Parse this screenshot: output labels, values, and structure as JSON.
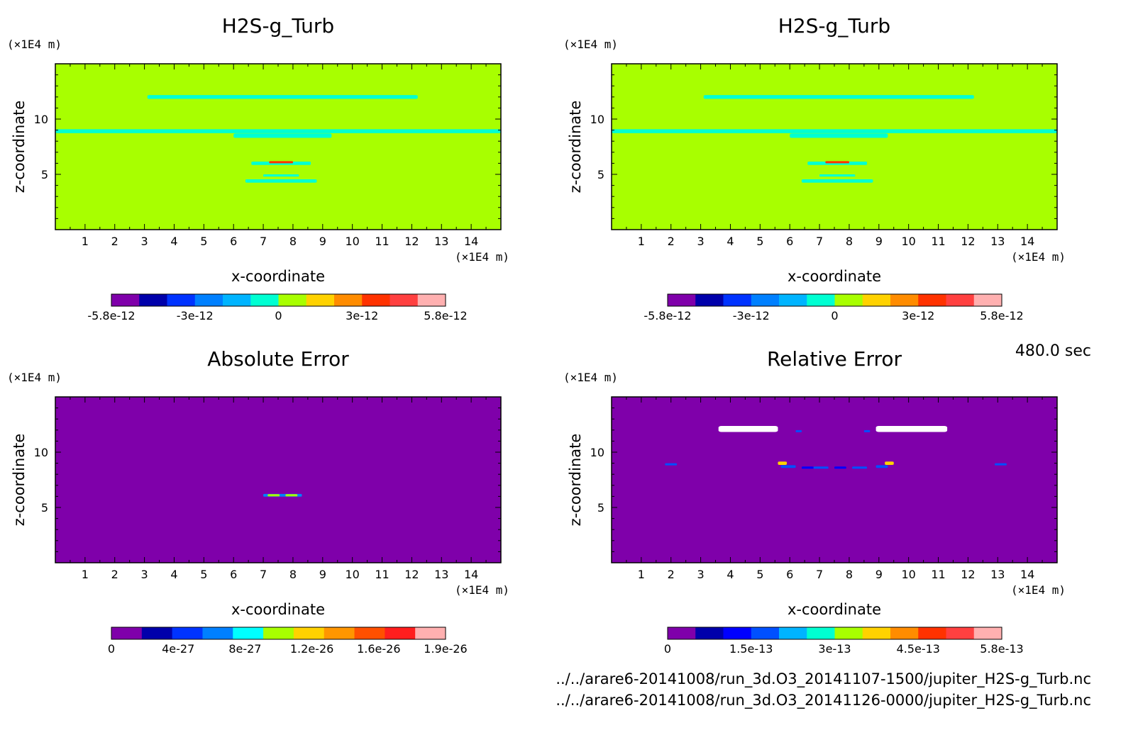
{
  "chart_data": [
    {
      "type": "heatmap",
      "title": "H2S-g_Turb",
      "xlabel": "x-coordinate",
      "ylabel": "z-coordinate",
      "xunit": "(×1E4 m)",
      "yunit": "(×1E4 m)",
      "xlim": [
        0,
        15
      ],
      "ylim": [
        0,
        15
      ],
      "xticks": [
        1,
        2,
        3,
        4,
        5,
        6,
        7,
        8,
        9,
        10,
        11,
        12,
        13,
        14
      ],
      "yticks": [
        5,
        10
      ],
      "background_color": "#a8ff00",
      "colorbar": {
        "colors": [
          "#7f00aa",
          "#0000aa",
          "#0033ff",
          "#0080ff",
          "#00b4ff",
          "#00ffd2",
          "#a8ff00",
          "#ffd200",
          "#ff8c00",
          "#ff3200",
          "#ff4040",
          "#ffb0b0"
        ],
        "ticks": [
          "-5.8e-12",
          "-3e-12",
          "0",
          "3e-12",
          "5.8e-12"
        ],
        "range": [
          -5.8e-12,
          5.8e-12
        ]
      },
      "features": [
        {
          "x": [
            3.1,
            12.2
          ],
          "y": 12.0,
          "thickness": 0.35,
          "color": "#00ffd2"
        },
        {
          "x": [
            0,
            15
          ],
          "y": 8.9,
          "thickness": 0.35,
          "color": "#00ffd2"
        },
        {
          "x": [
            6.0,
            9.3
          ],
          "y": 8.5,
          "thickness": 0.4,
          "color": "#00ffd2"
        },
        {
          "x": [
            6.6,
            8.6
          ],
          "y": 6.0,
          "thickness": 0.3,
          "color": "#00ffd2"
        },
        {
          "x": [
            7.2,
            8.0
          ],
          "y": 6.1,
          "thickness": 0.15,
          "color": "#ff3200"
        },
        {
          "x": [
            7.0,
            8.2
          ],
          "y": 4.9,
          "thickness": 0.2,
          "color": "#00ffd2"
        },
        {
          "x": [
            6.4,
            8.8
          ],
          "y": 4.4,
          "thickness": 0.3,
          "color": "#00ffd2"
        }
      ]
    },
    {
      "type": "heatmap",
      "title": "H2S-g_Turb",
      "xlabel": "x-coordinate",
      "ylabel": "z-coordinate",
      "xunit": "(×1E4 m)",
      "yunit": "(×1E4 m)",
      "xlim": [
        0,
        15
      ],
      "ylim": [
        0,
        15
      ],
      "xticks": [
        1,
        2,
        3,
        4,
        5,
        6,
        7,
        8,
        9,
        10,
        11,
        12,
        13,
        14
      ],
      "yticks": [
        5,
        10
      ],
      "background_color": "#a8ff00",
      "colorbar": {
        "colors": [
          "#7f00aa",
          "#0000aa",
          "#0033ff",
          "#0080ff",
          "#00b4ff",
          "#00ffd2",
          "#a8ff00",
          "#ffd200",
          "#ff8c00",
          "#ff3200",
          "#ff4040",
          "#ffb0b0"
        ],
        "ticks": [
          "-5.8e-12",
          "-3e-12",
          "0",
          "3e-12",
          "5.8e-12"
        ],
        "range": [
          -5.8e-12,
          5.8e-12
        ]
      },
      "features": [
        {
          "x": [
            3.1,
            12.2
          ],
          "y": 12.0,
          "thickness": 0.35,
          "color": "#00ffd2"
        },
        {
          "x": [
            0,
            15
          ],
          "y": 8.9,
          "thickness": 0.35,
          "color": "#00ffd2"
        },
        {
          "x": [
            6.0,
            9.3
          ],
          "y": 8.5,
          "thickness": 0.4,
          "color": "#00ffd2"
        },
        {
          "x": [
            6.6,
            8.6
          ],
          "y": 6.0,
          "thickness": 0.3,
          "color": "#00ffd2"
        },
        {
          "x": [
            7.2,
            8.0
          ],
          "y": 6.1,
          "thickness": 0.15,
          "color": "#ff3200"
        },
        {
          "x": [
            7.0,
            8.2
          ],
          "y": 4.9,
          "thickness": 0.2,
          "color": "#00ffd2"
        },
        {
          "x": [
            6.4,
            8.8
          ],
          "y": 4.4,
          "thickness": 0.3,
          "color": "#00ffd2"
        }
      ]
    },
    {
      "type": "heatmap",
      "title": "Absolute Error",
      "xlabel": "x-coordinate",
      "ylabel": "z-coordinate",
      "xunit": "(×1E4 m)",
      "yunit": "(×1E4 m)",
      "xlim": [
        0,
        15
      ],
      "ylim": [
        0,
        15
      ],
      "xticks": [
        1,
        2,
        3,
        4,
        5,
        6,
        7,
        8,
        9,
        10,
        11,
        12,
        13,
        14
      ],
      "yticks": [
        5,
        10
      ],
      "background_color": "#7f00aa",
      "colorbar": {
        "colors": [
          "#7f00aa",
          "#0000aa",
          "#0033ff",
          "#0080ff",
          "#00ffff",
          "#a8ff00",
          "#ffd200",
          "#ff9600",
          "#ff5000",
          "#ff1e1e",
          "#ffb0b0"
        ],
        "ticks": [
          "0",
          "4e-27",
          "8e-27",
          "1.2e-26",
          "1.6e-26",
          "1.9e-26"
        ],
        "range": [
          0,
          1.9e-26
        ]
      },
      "features": [
        {
          "x": [
            7.0,
            8.3
          ],
          "y": 6.1,
          "thickness": 0.25,
          "color": "#0080ff"
        },
        {
          "x": [
            7.15,
            7.55
          ],
          "y": 6.1,
          "thickness": 0.2,
          "color": "#a8ff00"
        },
        {
          "x": [
            7.75,
            8.15
          ],
          "y": 6.1,
          "thickness": 0.2,
          "color": "#a8ff00"
        }
      ]
    },
    {
      "type": "heatmap",
      "title": "Relative Error",
      "xlabel": "x-coordinate",
      "ylabel": "z-coordinate",
      "xunit": "(×1E4 m)",
      "yunit": "(×1E4 m)",
      "xlim": [
        0,
        15
      ],
      "ylim": [
        0,
        15
      ],
      "xticks": [
        1,
        2,
        3,
        4,
        5,
        6,
        7,
        8,
        9,
        10,
        11,
        12,
        13,
        14
      ],
      "yticks": [
        5,
        10
      ],
      "background_color": "#7f00aa",
      "colorbar": {
        "colors": [
          "#7f00aa",
          "#0000aa",
          "#0000ff",
          "#0050ff",
          "#00b4ff",
          "#00ffd2",
          "#a8ff00",
          "#ffd200",
          "#ff8c00",
          "#ff3200",
          "#ff4040",
          "#ffb0b0"
        ],
        "ticks": [
          "0",
          "1.5e-13",
          "3e-13",
          "4.5e-13",
          "5.8e-13"
        ],
        "range": [
          0,
          5.8e-13
        ]
      },
      "features": [
        {
          "x": [
            3.6,
            5.6
          ],
          "y": 12.1,
          "thickness": 0.55,
          "color": "#ffffff"
        },
        {
          "x": [
            8.9,
            11.3
          ],
          "y": 12.1,
          "thickness": 0.55,
          "color": "#ffffff"
        },
        {
          "x": [
            5.6,
            5.9
          ],
          "y": 9.0,
          "thickness": 0.3,
          "color": "#ffd200"
        },
        {
          "x": [
            5.7,
            6.2
          ],
          "y": 8.7,
          "thickness": 0.25,
          "color": "#0050ff"
        },
        {
          "x": [
            6.4,
            6.8
          ],
          "y": 8.6,
          "thickness": 0.2,
          "color": "#0000ff"
        },
        {
          "x": [
            6.8,
            7.3
          ],
          "y": 8.6,
          "thickness": 0.2,
          "color": "#0050ff"
        },
        {
          "x": [
            7.5,
            7.9
          ],
          "y": 8.6,
          "thickness": 0.2,
          "color": "#0000ff"
        },
        {
          "x": [
            8.1,
            8.6
          ],
          "y": 8.6,
          "thickness": 0.2,
          "color": "#0050ff"
        },
        {
          "x": [
            8.9,
            9.3
          ],
          "y": 8.7,
          "thickness": 0.25,
          "color": "#0050ff"
        },
        {
          "x": [
            9.2,
            9.5
          ],
          "y": 9.0,
          "thickness": 0.3,
          "color": "#ffd200"
        },
        {
          "x": [
            1.8,
            2.2
          ],
          "y": 8.9,
          "thickness": 0.12,
          "color": "#0050ff"
        },
        {
          "x": [
            12.9,
            13.3
          ],
          "y": 8.9,
          "thickness": 0.12,
          "color": "#0050ff"
        },
        {
          "x": [
            6.2,
            6.4
          ],
          "y": 11.9,
          "thickness": 0.15,
          "color": "#0050ff"
        },
        {
          "x": [
            8.5,
            8.7
          ],
          "y": 11.9,
          "thickness": 0.15,
          "color": "#0050ff"
        }
      ]
    }
  ],
  "time_label": "480.0 sec",
  "files": [
    "../../arare6-20141008/run_3d.O3_20141107-1500/jupiter_H2S-g_Turb.nc",
    "../../arare6-20141008/run_3d.O3_20141126-0000/jupiter_H2S-g_Turb.nc"
  ]
}
